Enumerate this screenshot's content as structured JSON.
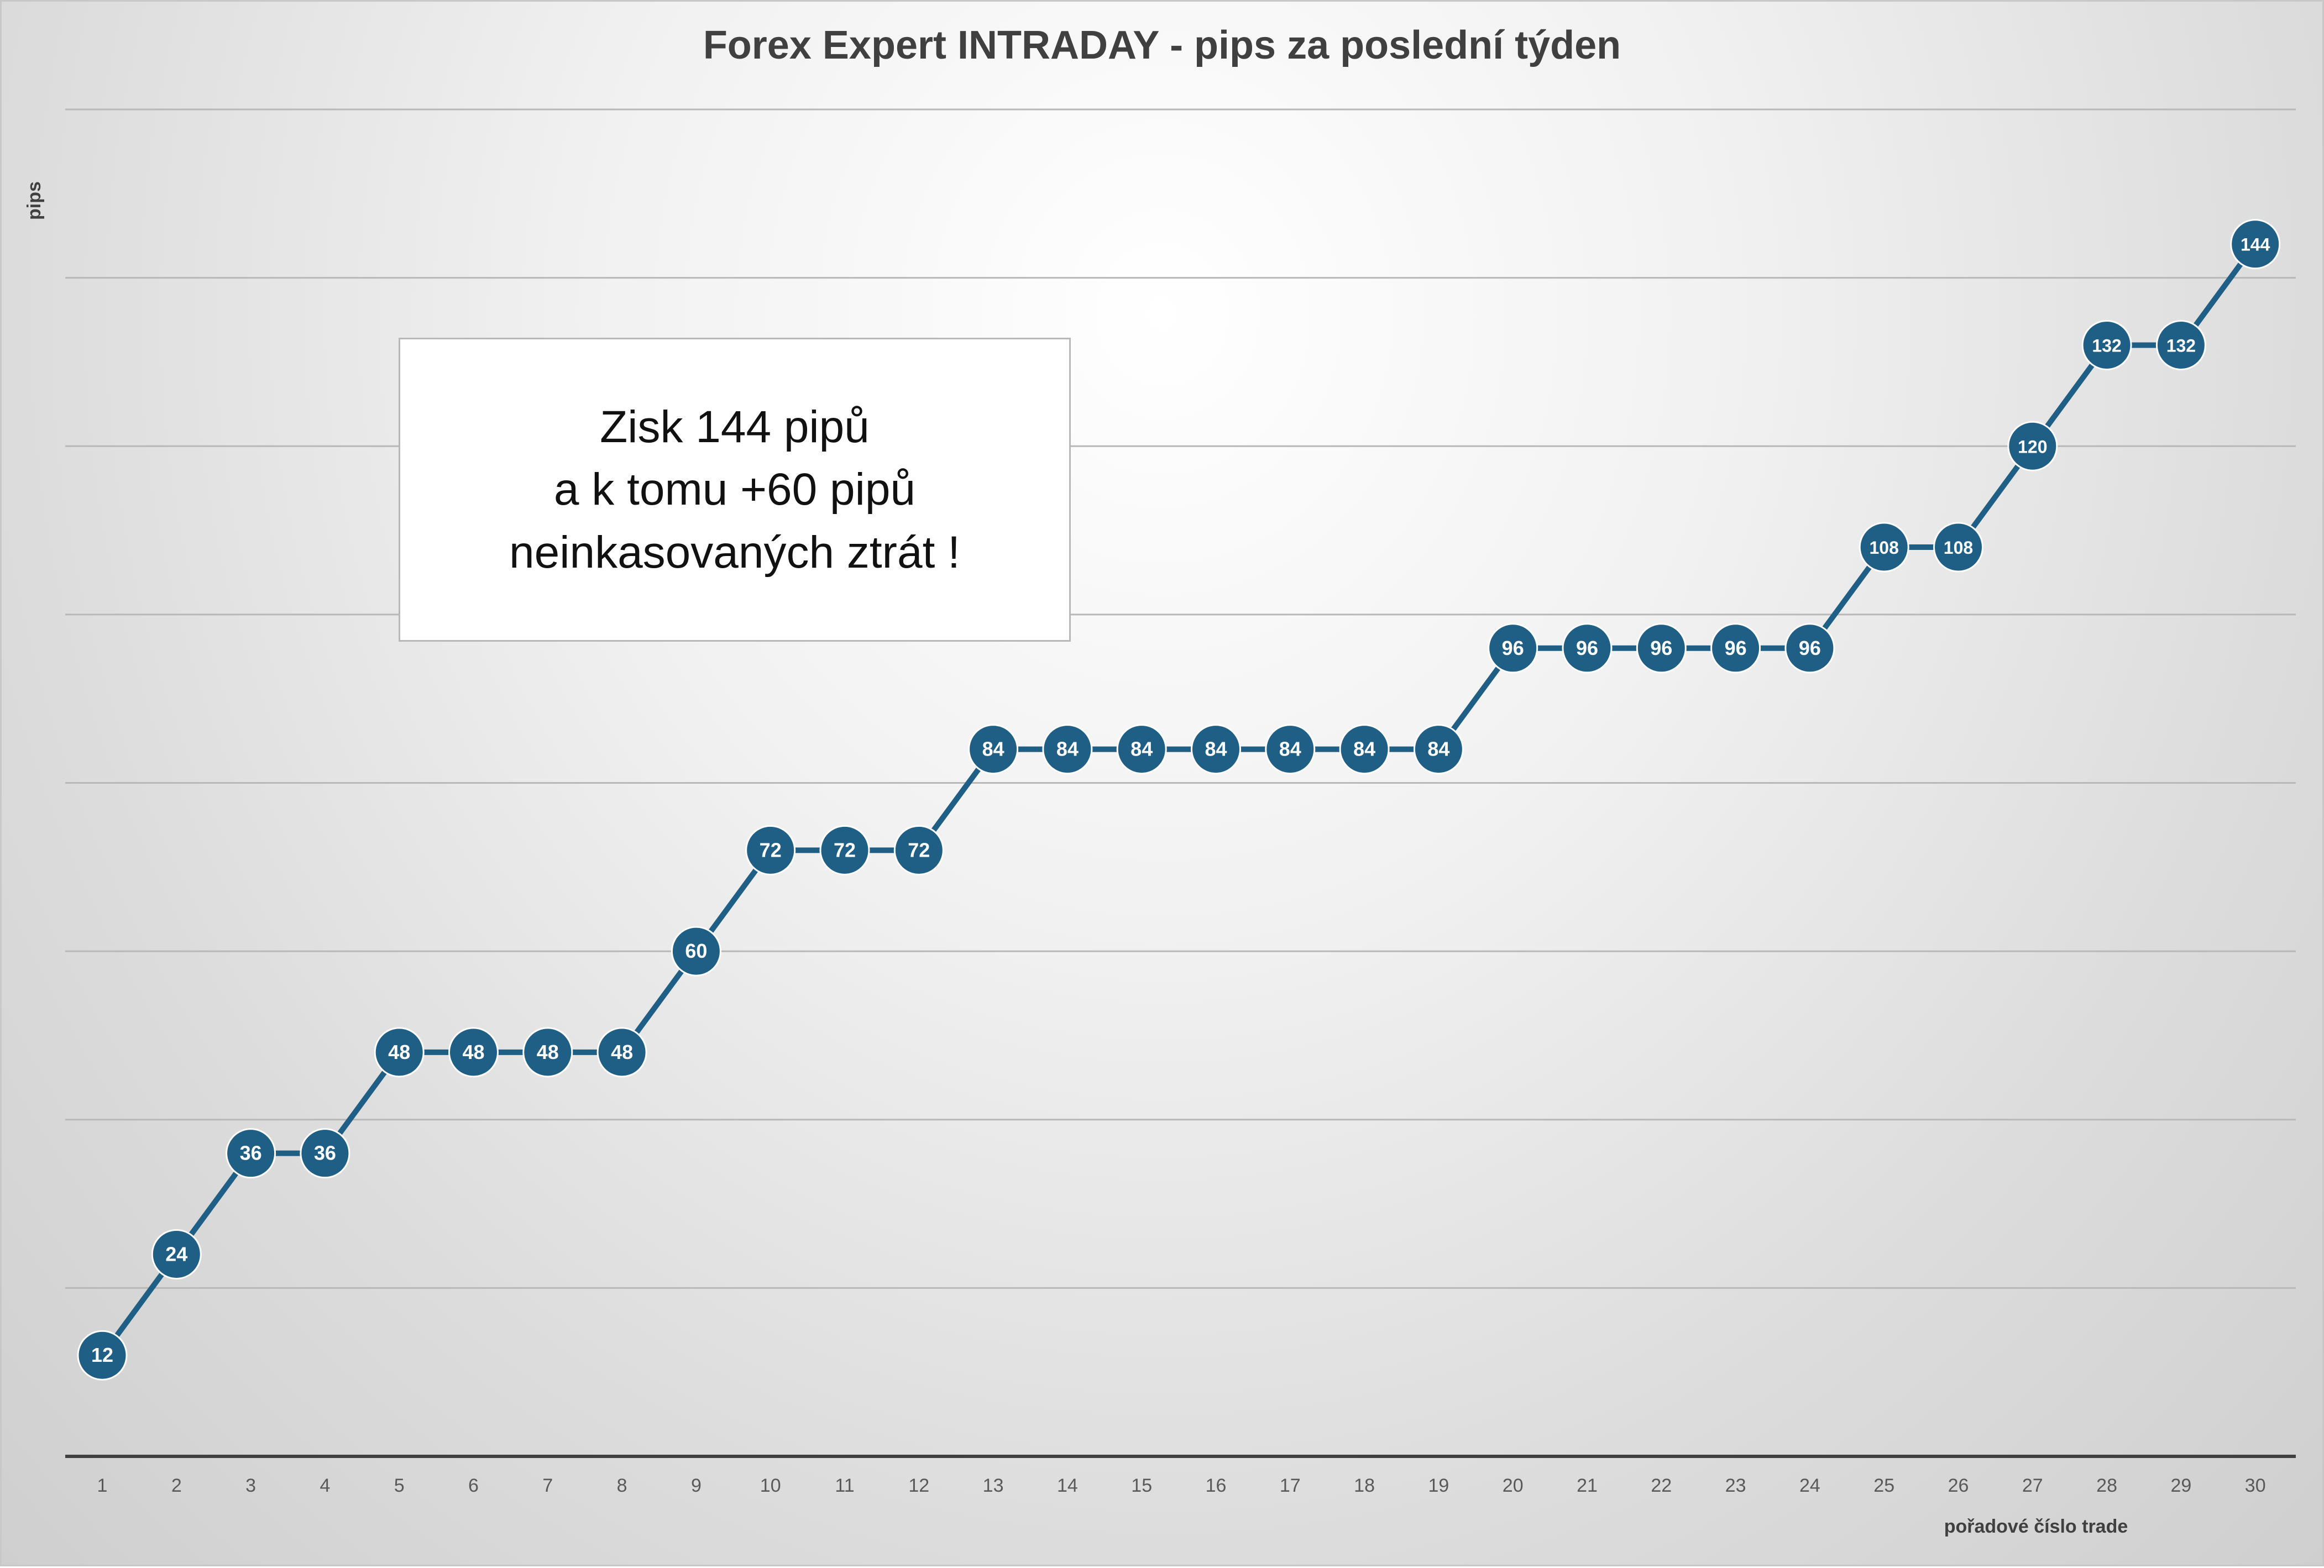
{
  "chart_data": {
    "type": "line",
    "title": "Forex Expert INTRADAY - pips za poslední týden",
    "xlabel": "pořadové číslo trade",
    "ylabel": "pips",
    "x": [
      1,
      2,
      3,
      4,
      5,
      6,
      7,
      8,
      9,
      10,
      11,
      12,
      13,
      14,
      15,
      16,
      17,
      18,
      19,
      20,
      21,
      22,
      23,
      24,
      25,
      26,
      27,
      28,
      29,
      30
    ],
    "series": [
      {
        "values": [
          12,
          24,
          36,
          36,
          48,
          48,
          48,
          48,
          60,
          72,
          72,
          72,
          84,
          84,
          84,
          84,
          84,
          84,
          84,
          96,
          96,
          96,
          96,
          96,
          108,
          108,
          120,
          132,
          132,
          144
        ]
      }
    ],
    "ylim": [
      0,
      160
    ],
    "grid": "horizontal",
    "data_labels": true,
    "annotation": [
      "Zisk 144 pipů",
      "a k tomu +60 pipů",
      "neinkasovaných ztrát !"
    ],
    "colors": {
      "line": "#1f5f85",
      "marker": "#1f5f85",
      "marker_text": "#ffffff",
      "grid": "#b8b8b8",
      "axis": "#404040",
      "title": "#404040"
    }
  }
}
